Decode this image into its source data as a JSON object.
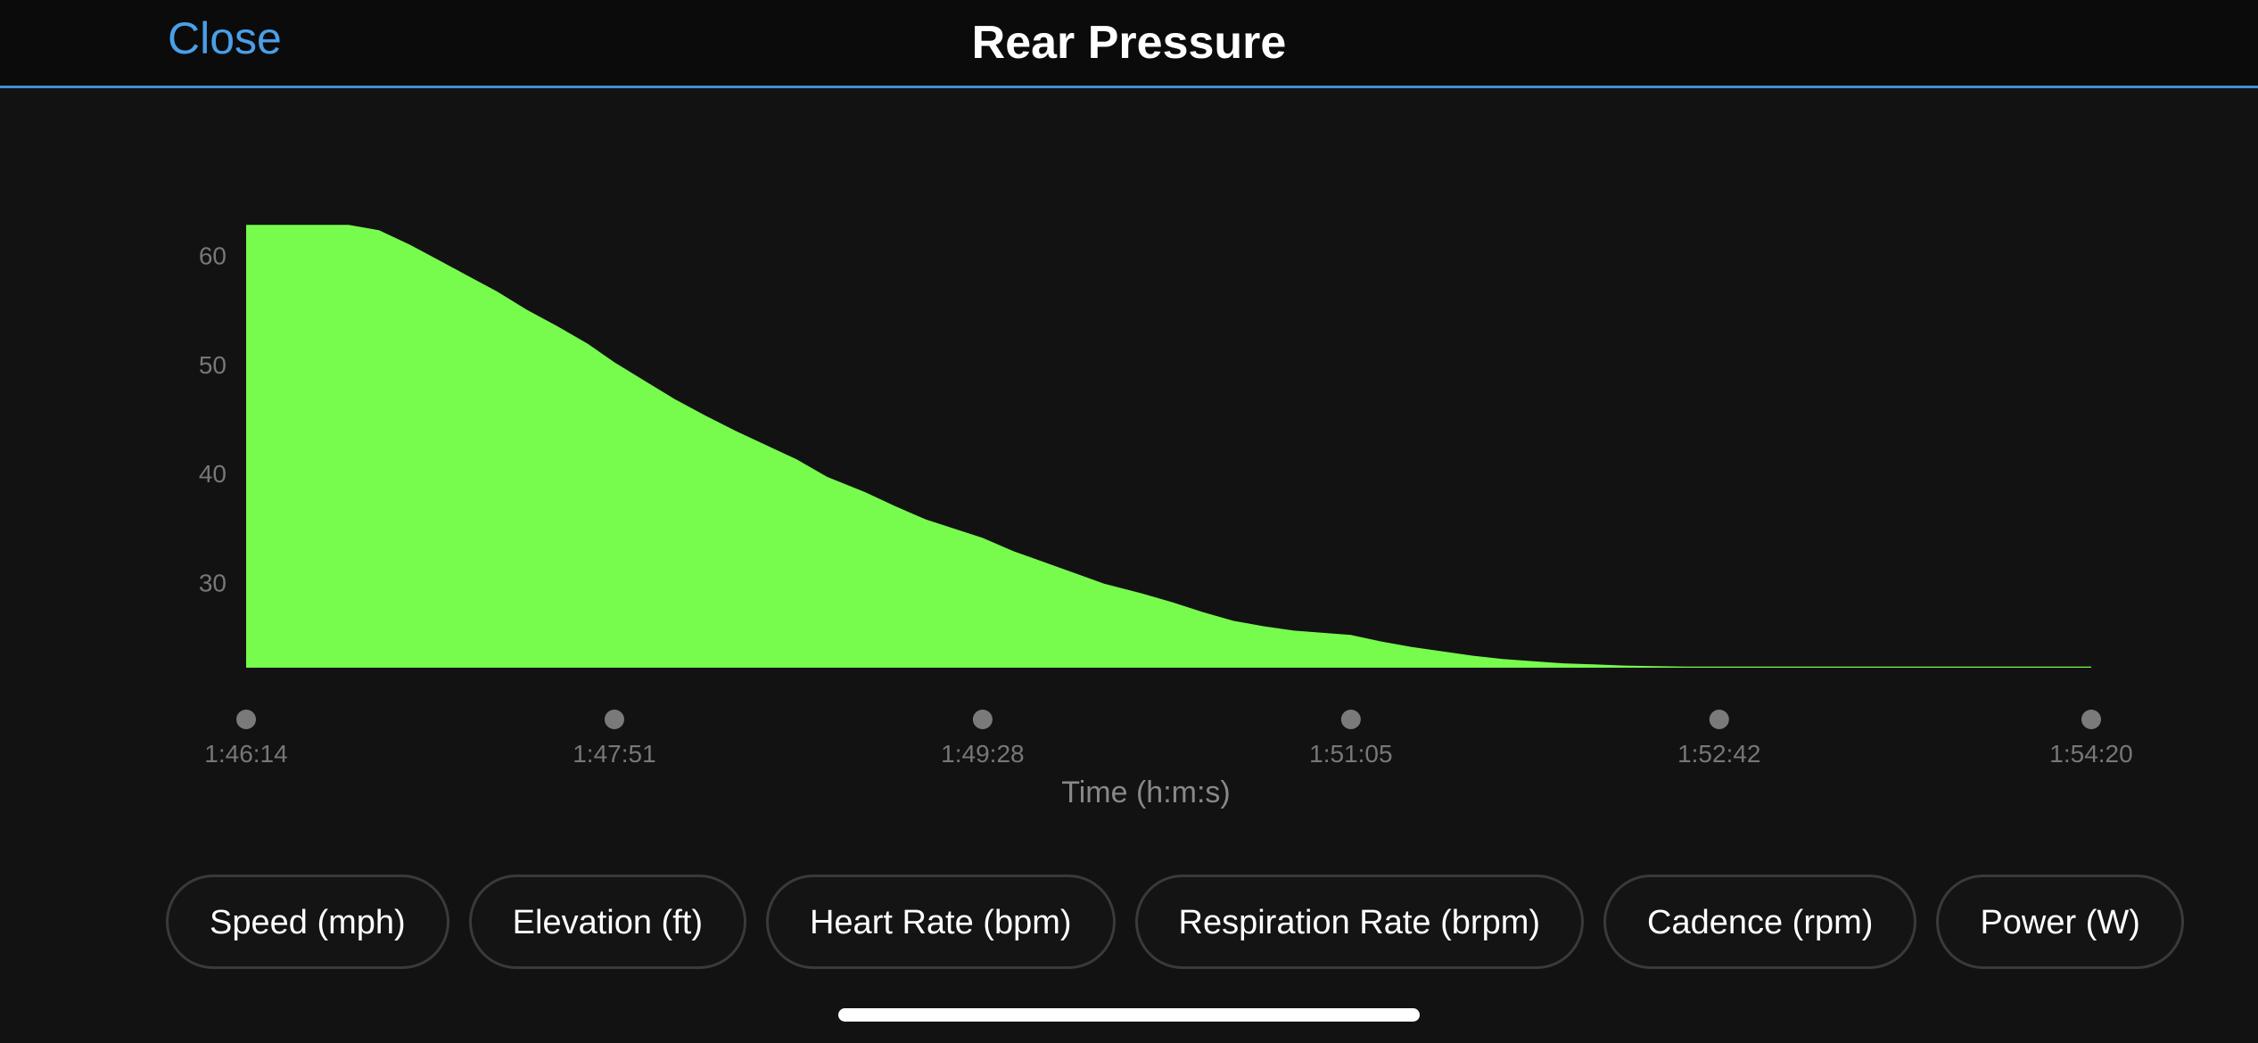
{
  "header": {
    "close_label": "Close",
    "title": "Rear Pressure"
  },
  "chart_data": {
    "type": "area",
    "title": "",
    "xlabel": "Time (h:m:s)",
    "ylabel": "",
    "x_tick_labels": [
      "1:46:14",
      "1:47:51",
      "1:49:28",
      "1:51:05",
      "1:52:42",
      "1:54:20"
    ],
    "x_ticks_seconds": [
      6374,
      6471,
      6568,
      6665,
      6762,
      6860
    ],
    "y_ticks": [
      30,
      40,
      50,
      60
    ],
    "xlim_seconds": [
      6374,
      6860
    ],
    "ylim": [
      22.2,
      66.9
    ],
    "grid": false,
    "legend": "none",
    "fill_color": "#77fb4d",
    "series": [
      {
        "x_seconds": [
          6374,
          6378,
          6382,
          6389,
          6397,
          6401,
          6409,
          6417,
          6424,
          6432,
          6440,
          6448,
          6456,
          6464,
          6471,
          6479,
          6487,
          6495,
          6503,
          6511,
          6519,
          6527,
          6537,
          6545,
          6553,
          6568,
          6576,
          6584,
          6592,
          6600,
          6610,
          6618,
          6626,
          6634,
          6642,
          6650,
          6665,
          6673,
          6681,
          6689,
          6697,
          6705,
          6713,
          6721,
          6729,
          6737,
          6745,
          6753,
          6762,
          6768,
          6776,
          6784,
          6792,
          6800,
          6810,
          6818,
          6826,
          6834,
          6842,
          6850,
          6860
        ],
        "y": [
          62.8,
          62.8,
          62.8,
          62.8,
          62.8,
          62.8,
          62.3,
          61.0,
          59.7,
          58.2,
          56.7,
          55.0,
          53.5,
          51.9,
          50.2,
          48.5,
          46.8,
          45.3,
          43.9,
          42.6,
          41.3,
          39.7,
          38.3,
          37.0,
          35.8,
          34.1,
          32.9,
          31.9,
          30.9,
          29.9,
          29.0,
          28.2,
          27.3,
          26.5,
          26.0,
          25.6,
          25.2,
          24.6,
          24.1,
          23.7,
          23.3,
          23.0,
          22.8,
          22.6,
          22.5,
          22.4,
          22.35,
          22.3,
          22.3,
          22.3,
          22.3,
          22.3,
          22.3,
          22.3,
          22.3,
          22.3,
          22.3,
          22.3,
          22.3,
          22.3,
          22.3
        ]
      }
    ]
  },
  "metric_buttons": [
    {
      "label": "Speed (mph)"
    },
    {
      "label": "Elevation (ft)"
    },
    {
      "label": "Heart Rate (bpm)"
    },
    {
      "label": "Respiration Rate (brpm)"
    },
    {
      "label": "Cadence (rpm)"
    },
    {
      "label": "Power (W)"
    }
  ]
}
